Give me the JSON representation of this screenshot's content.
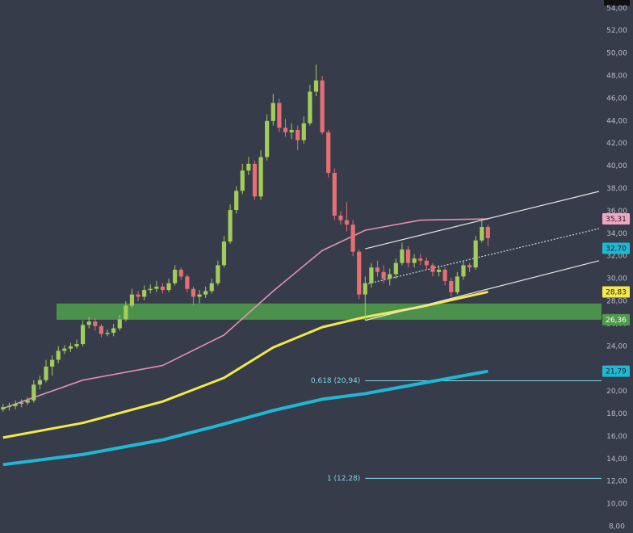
{
  "chart_data": {
    "type": "candlestick",
    "up_color": "#a3cc5a",
    "down_color": "#e56f73",
    "xlim": [
      -0.5,
      97.5
    ],
    "ylim": [
      7.43,
      54.74
    ],
    "yticks": [
      {
        "value": 8,
        "label": "8,00"
      },
      {
        "value": 10,
        "label": "10,00"
      },
      {
        "value": 12,
        "label": "12,00"
      },
      {
        "value": 14,
        "label": "14,00"
      },
      {
        "value": 16,
        "label": "16,00"
      },
      {
        "value": 18,
        "label": "18,00"
      },
      {
        "value": 20,
        "label": "20,00"
      },
      {
        "value": 22,
        "label": "22,00"
      },
      {
        "value": 24,
        "label": "24,00"
      },
      {
        "value": 26,
        "label": "26,00"
      },
      {
        "value": 28,
        "label": "28,00"
      },
      {
        "value": 30,
        "label": "30,00"
      },
      {
        "value": 32,
        "label": "32,00"
      },
      {
        "value": 34,
        "label": "34,00"
      },
      {
        "value": 36,
        "label": "36,00"
      },
      {
        "value": 38,
        "label": "38,00"
      },
      {
        "value": 40,
        "label": "40,00"
      },
      {
        "value": 42,
        "label": "42,00"
      },
      {
        "value": 44,
        "label": "44,00"
      },
      {
        "value": 46,
        "label": "46,00"
      },
      {
        "value": 48,
        "label": "48,00"
      },
      {
        "value": 50,
        "label": "50,00"
      },
      {
        "value": 52,
        "label": "52,00"
      },
      {
        "value": 54,
        "label": "54,00"
      }
    ],
    "x": [
      0,
      1,
      2,
      3,
      4,
      5,
      6,
      7,
      8,
      9,
      10,
      11,
      12,
      13,
      14,
      15,
      16,
      17,
      18,
      19,
      20,
      21,
      22,
      23,
      24,
      25,
      26,
      27,
      28,
      29,
      30,
      31,
      32,
      33,
      34,
      35,
      36,
      37,
      38,
      39,
      40,
      41,
      42,
      43,
      44,
      45,
      46,
      47,
      48,
      49,
      50,
      51,
      52,
      53,
      54,
      55,
      56,
      57,
      58,
      59,
      60,
      61,
      62,
      63,
      64,
      65,
      66,
      67,
      68,
      69,
      70,
      71,
      72,
      73,
      74,
      75,
      76,
      77,
      78,
      79
    ],
    "open": [
      18.4,
      18.6,
      18.7,
      18.9,
      19.0,
      19.2,
      20.6,
      21.0,
      22.2,
      22.8,
      23.6,
      23.8,
      24.0,
      24.2,
      25.9,
      26.2,
      25.8,
      25.1,
      25.2,
      25.6,
      26.4,
      27.6,
      28.6,
      28.4,
      29.0,
      29.1,
      29.3,
      29.0,
      29.6,
      30.8,
      30.2,
      29.1,
      28.4,
      28.6,
      28.9,
      29.6,
      31.2,
      33.3,
      36.1,
      37.8,
      39.6,
      40.2,
      37.3,
      40.8,
      44.0,
      45.6,
      43.4,
      43.0,
      43.2,
      42.3,
      43.8,
      46.6,
      47.6,
      43.0,
      39.4,
      35.6,
      35.2,
      34.8,
      32.4,
      28.6,
      29.6,
      31.0,
      30.6,
      30.0,
      30.4,
      31.4,
      32.6,
      31.4,
      31.8,
      31.6,
      31.2,
      30.6,
      30.8,
      29.8,
      28.8,
      30.2,
      31.2,
      31.0,
      33.4,
      34.6
    ],
    "high": [
      18.9,
      19.0,
      19.2,
      19.3,
      19.5,
      21.0,
      21.4,
      22.8,
      23.2,
      24.0,
      24.1,
      24.3,
      24.6,
      26.3,
      26.6,
      26.5,
      26.0,
      25.5,
      26.0,
      26.8,
      28.0,
      29.1,
      28.9,
      29.4,
      29.5,
      29.8,
      29.6,
      30.0,
      31.2,
      31.0,
      30.4,
      29.3,
      29.0,
      29.3,
      30.0,
      31.6,
      33.8,
      36.6,
      38.2,
      40.2,
      40.8,
      40.5,
      41.4,
      44.6,
      46.4,
      46.0,
      44.2,
      43.8,
      43.6,
      44.4,
      47.2,
      49.0,
      48.0,
      43.2,
      39.8,
      36.0,
      36.8,
      35.2,
      32.6,
      30.2,
      31.4,
      31.6,
      31.2,
      30.9,
      31.8,
      33.2,
      32.9,
      32.2,
      32.2,
      31.9,
      31.4,
      31.2,
      31.0,
      30.1,
      30.6,
      31.6,
      31.4,
      33.8,
      35.2,
      34.8
    ],
    "low": [
      18.2,
      18.3,
      18.4,
      18.6,
      18.8,
      19.0,
      20.2,
      20.8,
      21.4,
      22.5,
      23.3,
      23.5,
      23.8,
      24.0,
      25.6,
      25.4,
      24.8,
      24.9,
      24.9,
      25.4,
      26.2,
      27.4,
      28.0,
      28.1,
      28.7,
      28.8,
      28.7,
      28.8,
      29.4,
      29.9,
      28.8,
      27.6,
      27.8,
      28.3,
      28.7,
      29.4,
      31.0,
      33.1,
      35.8,
      37.5,
      39.2,
      37.0,
      37.0,
      40.5,
      43.6,
      43.0,
      42.6,
      42.4,
      41.4,
      42.0,
      43.6,
      46.2,
      42.8,
      39.0,
      35.2,
      34.8,
      34.2,
      32.0,
      28.2,
      26.36,
      29.2,
      30.2,
      29.6,
      29.4,
      30.0,
      31.2,
      31.0,
      31.0,
      31.2,
      30.8,
      30.2,
      30.2,
      29.4,
      28.4,
      28.6,
      29.9,
      30.6,
      30.8,
      33.2,
      32.9
    ],
    "close": [
      18.6,
      18.7,
      18.9,
      19.0,
      19.2,
      20.6,
      21.0,
      22.2,
      22.8,
      23.6,
      23.8,
      24.0,
      24.2,
      25.9,
      26.2,
      25.8,
      25.1,
      25.2,
      25.6,
      26.4,
      27.6,
      28.6,
      28.4,
      29.0,
      29.1,
      29.3,
      29.0,
      29.6,
      30.8,
      30.2,
      29.1,
      28.4,
      28.6,
      28.9,
      29.6,
      31.2,
      33.3,
      36.1,
      37.8,
      39.6,
      40.2,
      37.3,
      40.8,
      44.0,
      45.6,
      43.4,
      43.0,
      43.2,
      42.3,
      43.8,
      46.6,
      47.6,
      43.0,
      39.4,
      35.6,
      35.2,
      34.8,
      32.4,
      28.6,
      29.6,
      31.0,
      30.6,
      30.0,
      30.4,
      31.4,
      32.6,
      31.4,
      31.8,
      31.6,
      31.2,
      30.6,
      30.8,
      29.8,
      28.8,
      30.2,
      31.2,
      31.0,
      33.4,
      34.6,
      33.6
    ],
    "series": [
      {
        "color": "#e58fb0",
        "width": 1.6,
        "x": [
          0,
          13,
          26,
          36,
          44,
          52,
          59,
          68,
          79
        ],
        "values": [
          18.5,
          21.0,
          22.3,
          25.0,
          28.9,
          32.5,
          34.3,
          35.2,
          35.31
        ]
      },
      {
        "color": "#f3e94a",
        "width": 3,
        "x": [
          0,
          13,
          26,
          36,
          44,
          52,
          59,
          68,
          79
        ],
        "values": [
          15.9,
          17.2,
          19.1,
          21.2,
          23.9,
          25.7,
          26.6,
          27.5,
          28.83
        ]
      },
      {
        "color": "#1fb8d4",
        "width": 4,
        "x": [
          0,
          13,
          26,
          36,
          44,
          52,
          59,
          68,
          79
        ],
        "values": [
          13.5,
          14.4,
          15.7,
          17.1,
          18.3,
          19.3,
          19.8,
          20.7,
          21.79
        ]
      }
    ],
    "trend_lines": [
      {
        "color": "#e6e6e6",
        "dash": false,
        "x": [
          59,
          97.1
        ],
        "values": [
          32.66,
          37.75
        ]
      },
      {
        "color": "#cfd6e0",
        "dash": true,
        "x": [
          59,
          97.1
        ],
        "values": [
          29.5,
          34.45
        ]
      },
      {
        "color": "#e6e6e6",
        "dash": false,
        "x": [
          59,
          97.1
        ],
        "values": [
          26.3,
          31.6
        ]
      }
    ],
    "zones": [
      {
        "from": 26.36,
        "to": 27.8,
        "color": "#4f9a4b"
      }
    ],
    "fib_levels": [
      {
        "value": 20.94,
        "label": "0,618 (20,94)",
        "x_start": 59
      },
      {
        "value": 12.28,
        "label": "1 (12,28)",
        "x_start": 59
      }
    ],
    "fib_color": "#7fd3e6",
    "price_labels": [
      {
        "value": 35.31,
        "label": "35,31",
        "color": "#f2a5c3",
        "text_color": "#222"
      },
      {
        "value": 32.7,
        "label": "32,70",
        "color": "#1fb8d4",
        "text_color": "#222"
      },
      {
        "value": 28.83,
        "label": "28,83",
        "color": "#f3e94a",
        "text_color": "#222"
      },
      {
        "value": 26.36,
        "label": "26,36",
        "color": "#4f9a4b",
        "text_color": "#fff"
      },
      {
        "value": 21.79,
        "label": "21,79",
        "color": "#1fb8d4",
        "text_color": "#222"
      }
    ]
  }
}
